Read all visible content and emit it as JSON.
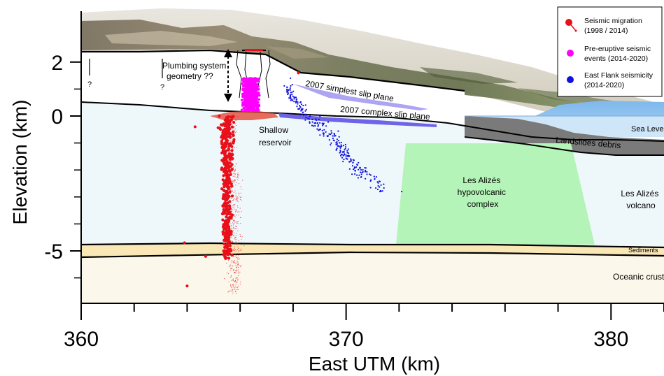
{
  "chart_data": {
    "type": "scatter",
    "xlabel": "East UTM (km)",
    "ylabel": "Elevation (km)",
    "xlim": [
      360,
      382
    ],
    "ylim": [
      -7,
      2.9
    ],
    "x_ticks": [
      {
        "value": 360,
        "label": "360"
      },
      {
        "value": 370,
        "label": "370"
      },
      {
        "value": 380,
        "label": "380"
      }
    ],
    "y_ticks": [
      {
        "value": 2,
        "label": "2"
      },
      {
        "value": 0,
        "label": "0"
      },
      {
        "value": -5,
        "label": "-5"
      }
    ],
    "annotations": {
      "plumbing": "Plumbing system geometry ??",
      "q1": "?",
      "q2": "?",
      "simplest_slip": "2007 simplest slip plane",
      "complex_slip": "2007 complex slip plane",
      "shallow_reservoir": "Shallow reservoir",
      "sea_level": "Sea Level",
      "landslides": "Landslides debris",
      "alizes_complex": "Les Alizés hypovolcanic complex",
      "alizes_volcano": "Les Alizés volcano",
      "sediments": "Sediments",
      "oceanic_crust": "Oceanic crust"
    },
    "legend": {
      "placement": "top-right",
      "entries": [
        {
          "label": "Seismic migration (1998 / 2014)",
          "color": "#e8101a"
        },
        {
          "label": "Pre-eruptive seismic events (2014-2020)",
          "color": "#ff00ff"
        },
        {
          "label": "East Flank seismicity (2014-2020)",
          "color": "#1010e0"
        }
      ]
    },
    "series": [
      {
        "name": "Seismic migration (1998 / 2014)",
        "color": "#e8101a",
        "cluster": {
          "x_center": 365.5,
          "y_range": [
            -5.3,
            0.0
          ]
        },
        "points": [
          {
            "x": 363.9,
            "y": -4.7
          },
          {
            "x": 364.0,
            "y": -6.3
          },
          {
            "x": 364.3,
            "y": -0.4
          },
          {
            "x": 364.7,
            "y": -5.2
          },
          {
            "x": 368.2,
            "y": 1.6
          }
        ]
      },
      {
        "name": "Pre-eruptive seismic events (2014-2020)",
        "color": "#ff00ff",
        "cluster": {
          "x_center": 366.4,
          "y_range": [
            0.2,
            1.4
          ]
        }
      },
      {
        "name": "East Flank seismicity (2014-2020)",
        "color": "#1010e0",
        "cluster_path": [
          [
            367.7,
            1.1
          ],
          [
            368.5,
            0.0
          ],
          [
            369.6,
            -0.9
          ],
          [
            370.4,
            -2.0
          ],
          [
            371.4,
            -2.7
          ]
        ],
        "points": [
          {
            "x": 367.9,
            "y": 1.4
          },
          {
            "x": 372.1,
            "y": -2.8
          }
        ]
      }
    ],
    "colors": {
      "magma": "#e8101a",
      "magenta": "#ff00ff",
      "east_flank": "#1010e0",
      "ocean": "#8fc3f0",
      "volcano_fill": "#eef8fb",
      "hypovolcanic": "#b5f4b8",
      "sediments": "#f9e7b6",
      "oceanic_crust": "#fbf7ea",
      "debris": "#7a7a7a",
      "slip_plane": "#7a6ee8"
    }
  }
}
